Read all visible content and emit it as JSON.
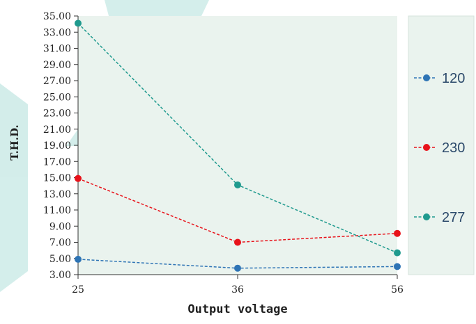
{
  "chart_data": {
    "type": "line",
    "title": "",
    "xlabel": "Output voltage",
    "ylabel": "T.H.D.",
    "categories": [
      "25",
      "36",
      "56"
    ],
    "ylim": [
      3,
      35
    ],
    "y_ticks": [
      "35.00",
      "33.00",
      "31.00",
      "29.00",
      "27.00",
      "25.00",
      "23.00",
      "21.00",
      "19.00",
      "17.00",
      "15.00",
      "13.00",
      "11.00",
      "9.00",
      "7.00",
      "5.00",
      "3.00"
    ],
    "grid": false,
    "legend_position": "right",
    "series": [
      {
        "name": "120",
        "color": "#2e74b5",
        "values": [
          4.9,
          3.8,
          4.0
        ]
      },
      {
        "name": "230",
        "color": "#e8121a",
        "values": [
          14.9,
          7.0,
          8.1
        ]
      },
      {
        "name": "277",
        "color": "#1f9a8e",
        "values": [
          34.1,
          14.1,
          5.7
        ]
      }
    ],
    "colors": {
      "plot_background": "#eaf3ee",
      "legend_background": "#eaf3ee",
      "watermark": "#3bb0a4"
    }
  }
}
